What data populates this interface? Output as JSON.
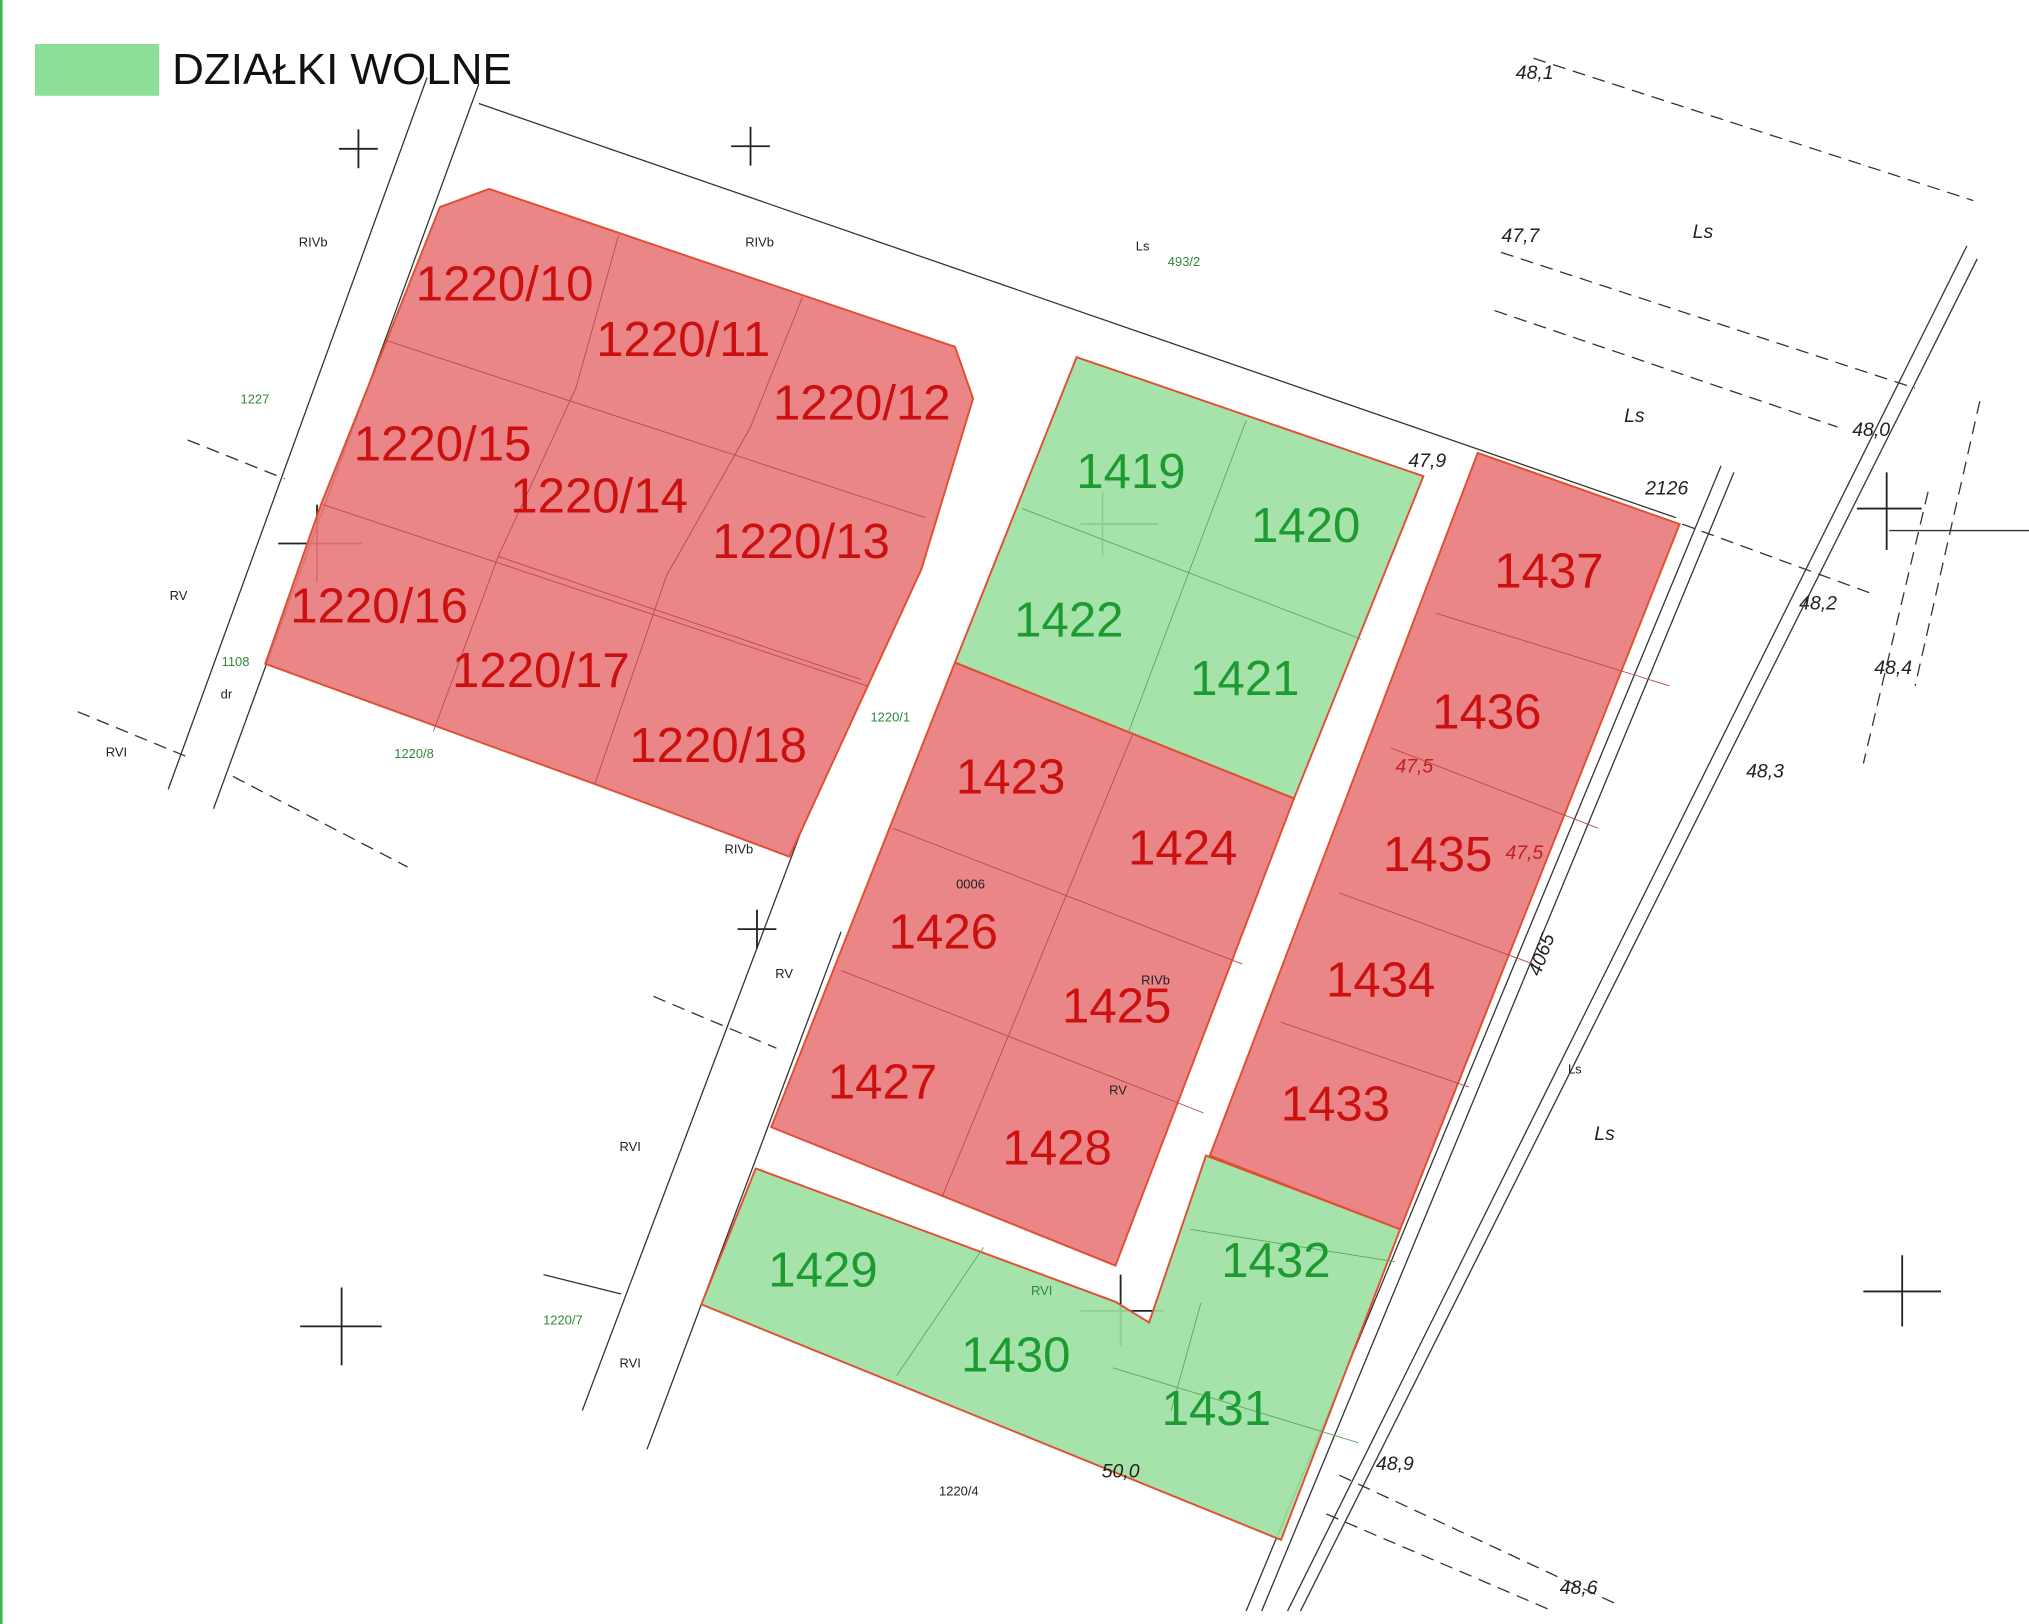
{
  "legend": {
    "label": "DZIAŁKI WOLNE",
    "color": "#8ddf97"
  },
  "parcels": [
    {
      "label": "1220/10",
      "color": "#e8787b"
    },
    {
      "label": "1220/11",
      "color": "#e8787b"
    },
    {
      "label": "1220/12",
      "color": "#e8787b"
    },
    {
      "label": "1220/15",
      "color": "#e8787b"
    },
    {
      "label": "1220/14",
      "color": "#e8787b"
    },
    {
      "label": "1220/13",
      "color": "#e8787b"
    },
    {
      "label": "1220/16",
      "color": "#e8787b"
    },
    {
      "label": "1220/17",
      "color": "#e8787b"
    },
    {
      "label": "1220/18",
      "color": "#e8787b"
    },
    {
      "label": "1419",
      "color": "#9ce0a2"
    },
    {
      "label": "1420",
      "color": "#9ce0a2"
    },
    {
      "label": "1422",
      "color": "#9ce0a2"
    },
    {
      "label": "1421",
      "color": "#9ce0a2"
    },
    {
      "label": "1423",
      "color": "#e8787b"
    },
    {
      "label": "1424",
      "color": "#e8787b"
    },
    {
      "label": "1426",
      "color": "#e8787b"
    },
    {
      "label": "1425",
      "color": "#e8787b"
    },
    {
      "label": "1427",
      "color": "#e8787b"
    },
    {
      "label": "1428",
      "color": "#e8787b"
    },
    {
      "label": "1437",
      "color": "#e8787b"
    },
    {
      "label": "1436",
      "color": "#e8787b"
    },
    {
      "label": "1435",
      "color": "#e8787b"
    },
    {
      "label": "1434",
      "color": "#e8787b"
    },
    {
      "label": "1433",
      "color": "#e8787b"
    },
    {
      "label": "1432",
      "color": "#9ce0a2"
    },
    {
      "label": "1429",
      "color": "#9ce0a2"
    },
    {
      "label": "1430",
      "color": "#9ce0a2"
    },
    {
      "label": "1431",
      "color": "#9ce0a2"
    }
  ],
  "map_labels": [
    "RIVb",
    "RIVb",
    "Ls",
    "493/2",
    "1227",
    "RV",
    "1108",
    "dr",
    "RVI",
    "1220/8",
    "1220/1",
    "RIVb",
    "0006",
    "RV",
    "RIVb",
    "RV",
    "RVI",
    "RVI",
    "1220/7",
    "RVI",
    "1220/4",
    "Ls",
    "Ls",
    "48,1",
    "47,7",
    "Ls",
    "Ls",
    "47,9",
    "2126",
    "48,0",
    "48,2",
    "48,4",
    "48,3",
    "47,5",
    "47,5",
    "4065",
    "48,9",
    "48,6",
    "50,0"
  ]
}
